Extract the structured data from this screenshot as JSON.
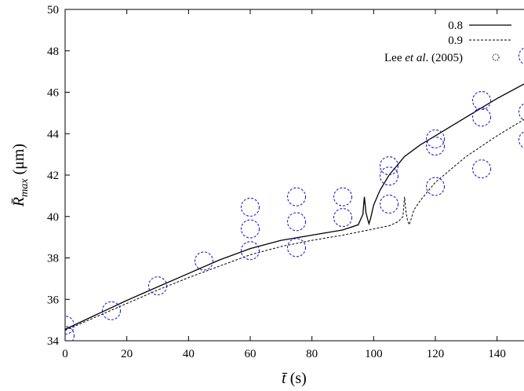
{
  "chart_data": {
    "type": "line",
    "xlabel": "t̄ (s)",
    "ylabel": "R̄max (μm)",
    "xlim": [
      0,
      150
    ],
    "ylim": [
      34,
      50
    ],
    "xticks": [
      0,
      20,
      40,
      60,
      80,
      100,
      120,
      140
    ],
    "yticks": [
      34,
      36,
      38,
      40,
      42,
      44,
      46,
      48,
      50
    ],
    "grid": false,
    "legend_position": "top-right",
    "legend": [
      {
        "label": "0.8",
        "style": "solid"
      },
      {
        "label": "0.9",
        "style": "dashed"
      },
      {
        "label_main": "Lee ",
        "label_italic": "et al",
        "label_tail": ". (2005)",
        "style": "dotted-circle"
      }
    ],
    "series": [
      {
        "name": "0.8",
        "style": "solid",
        "color": "#000000",
        "x": [
          0,
          10,
          20,
          30,
          40,
          50,
          60,
          70,
          80,
          90,
          95,
          96.5,
          97,
          97.5,
          98,
          98.5,
          99,
          100,
          102,
          105,
          110,
          115,
          120,
          130,
          140,
          150
        ],
        "y": [
          34.55,
          35.25,
          35.95,
          36.6,
          37.25,
          37.9,
          38.45,
          38.85,
          39.1,
          39.35,
          39.6,
          40.1,
          40.95,
          40.2,
          39.9,
          39.65,
          39.9,
          40.55,
          41.25,
          42.0,
          42.9,
          43.45,
          43.9,
          44.8,
          45.7,
          46.5
        ]
      },
      {
        "name": "0.9",
        "style": "dashed",
        "color": "#000000",
        "x": [
          0,
          10,
          20,
          30,
          40,
          50,
          60,
          70,
          80,
          90,
          100,
          105,
          108,
          109.5,
          110,
          110.5,
          111,
          111.5,
          112,
          113,
          115,
          120,
          130,
          140,
          150
        ],
        "y": [
          34.5,
          35.15,
          35.8,
          36.45,
          37.05,
          37.6,
          38.15,
          38.55,
          38.85,
          39.1,
          39.4,
          39.55,
          39.75,
          40.0,
          40.95,
          40.2,
          39.8,
          39.6,
          39.8,
          40.3,
          40.75,
          41.65,
          42.9,
          43.9,
          44.8
        ]
      }
    ],
    "scatter": {
      "name": "Lee et al. (2005)",
      "color": "#2222cc",
      "points": [
        {
          "x": 0,
          "y": 34.75
        },
        {
          "x": 0,
          "y": 34.25
        },
        {
          "x": 15,
          "y": 35.45
        },
        {
          "x": 30,
          "y": 36.65
        },
        {
          "x": 45,
          "y": 37.85
        },
        {
          "x": 60,
          "y": 38.35
        },
        {
          "x": 60,
          "y": 39.4
        },
        {
          "x": 60,
          "y": 40.45
        },
        {
          "x": 75,
          "y": 38.5
        },
        {
          "x": 75,
          "y": 39.75
        },
        {
          "x": 75,
          "y": 40.95
        },
        {
          "x": 90,
          "y": 39.95
        },
        {
          "x": 90,
          "y": 40.95
        },
        {
          "x": 105,
          "y": 40.6
        },
        {
          "x": 105,
          "y": 41.95
        },
        {
          "x": 105,
          "y": 42.45
        },
        {
          "x": 120,
          "y": 41.45
        },
        {
          "x": 120,
          "y": 43.4
        },
        {
          "x": 120,
          "y": 43.75
        },
        {
          "x": 135,
          "y": 42.3
        },
        {
          "x": 135,
          "y": 44.8
        },
        {
          "x": 135,
          "y": 45.6
        },
        {
          "x": 150,
          "y": 43.7
        },
        {
          "x": 150,
          "y": 45.05
        },
        {
          "x": 150,
          "y": 47.75
        }
      ]
    }
  }
}
